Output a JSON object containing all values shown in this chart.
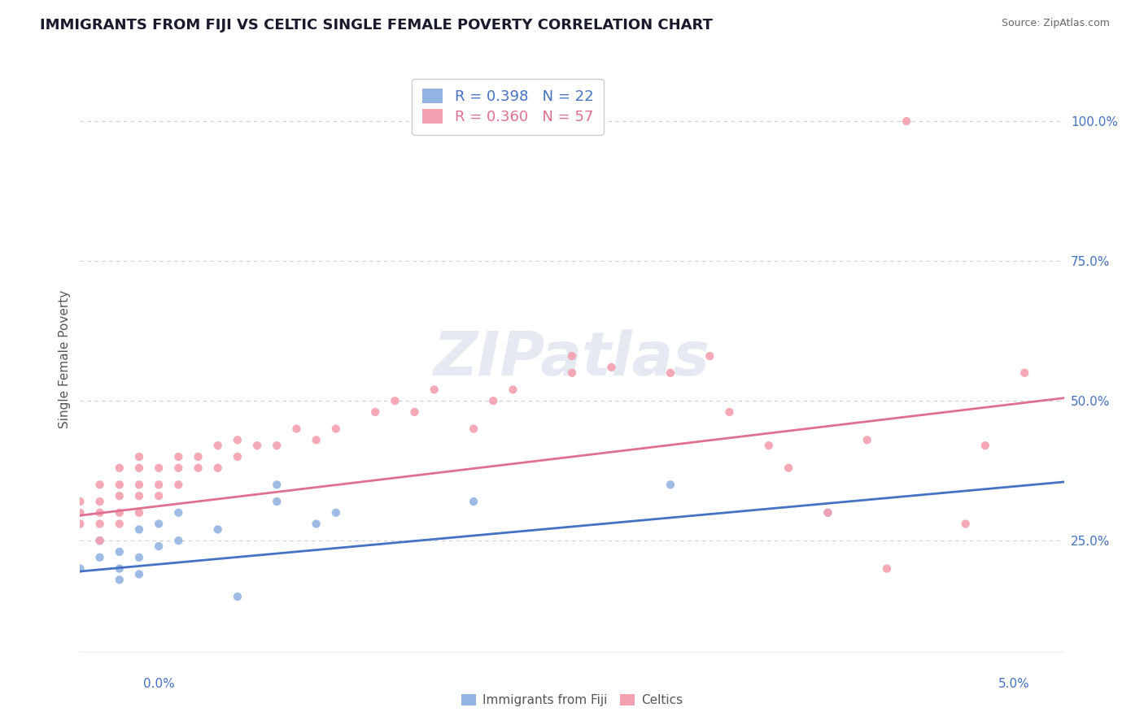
{
  "title": "IMMIGRANTS FROM FIJI VS CELTIC SINGLE FEMALE POVERTY CORRELATION CHART",
  "source": "Source: ZipAtlas.com",
  "ylabel": "Single Female Poverty",
  "watermark": "ZIPatlas",
  "xlim": [
    0.0,
    0.05
  ],
  "ylim": [
    0.05,
    1.1
  ],
  "yticks": [
    0.25,
    0.5,
    0.75,
    1.0
  ],
  "ytick_labels": [
    "25.0%",
    "50.0%",
    "75.0%",
    "100.0%"
  ],
  "fiji_R": 0.398,
  "fiji_N": 22,
  "celtic_R": 0.36,
  "celtic_N": 57,
  "fiji_color": "#92b4e3",
  "celtic_color": "#f4a0b0",
  "fiji_scatter_x": [
    0.0,
    0.001,
    0.001,
    0.002,
    0.002,
    0.002,
    0.003,
    0.003,
    0.003,
    0.004,
    0.004,
    0.005,
    0.005,
    0.007,
    0.008,
    0.01,
    0.01,
    0.012,
    0.013,
    0.02,
    0.03,
    0.038
  ],
  "fiji_scatter_y": [
    0.2,
    0.22,
    0.25,
    0.18,
    0.2,
    0.23,
    0.19,
    0.22,
    0.27,
    0.24,
    0.28,
    0.25,
    0.3,
    0.27,
    0.15,
    0.32,
    0.35,
    0.28,
    0.3,
    0.32,
    0.35,
    0.3
  ],
  "celtic_scatter_x": [
    0.0,
    0.0,
    0.0,
    0.001,
    0.001,
    0.001,
    0.001,
    0.001,
    0.002,
    0.002,
    0.002,
    0.002,
    0.002,
    0.003,
    0.003,
    0.003,
    0.003,
    0.003,
    0.004,
    0.004,
    0.004,
    0.005,
    0.005,
    0.005,
    0.006,
    0.006,
    0.007,
    0.007,
    0.008,
    0.008,
    0.009,
    0.01,
    0.011,
    0.012,
    0.013,
    0.015,
    0.016,
    0.017,
    0.018,
    0.02,
    0.021,
    0.022,
    0.025,
    0.025,
    0.027,
    0.03,
    0.032,
    0.033,
    0.035,
    0.036,
    0.038,
    0.04,
    0.041,
    0.042,
    0.045,
    0.046,
    0.048
  ],
  "celtic_scatter_y": [
    0.28,
    0.3,
    0.32,
    0.25,
    0.28,
    0.3,
    0.32,
    0.35,
    0.28,
    0.3,
    0.33,
    0.35,
    0.38,
    0.3,
    0.33,
    0.35,
    0.38,
    0.4,
    0.33,
    0.35,
    0.38,
    0.35,
    0.38,
    0.4,
    0.38,
    0.4,
    0.38,
    0.42,
    0.4,
    0.43,
    0.42,
    0.42,
    0.45,
    0.43,
    0.45,
    0.48,
    0.5,
    0.48,
    0.52,
    0.45,
    0.5,
    0.52,
    0.55,
    0.58,
    0.56,
    0.55,
    0.58,
    0.48,
    0.42,
    0.38,
    0.3,
    0.43,
    0.2,
    1.0,
    0.28,
    0.42,
    0.55
  ],
  "fiji_line_x": [
    0.0,
    0.05
  ],
  "fiji_line_y": [
    0.195,
    0.355
  ],
  "celtic_line_x": [
    0.0,
    0.05
  ],
  "celtic_line_y": [
    0.295,
    0.505
  ],
  "fiji_line_color": "#4472c4",
  "celtic_line_color": "#e07090",
  "background_color": "#ffffff",
  "grid_color": "#cccccc",
  "title_fontsize": 13,
  "scatter_size": 55,
  "legend_label_fiji": "R = 0.398   N = 22",
  "legend_label_celtic": "R = 0.360   N = 57",
  "bottom_label_fiji": "Immigrants from Fiji",
  "bottom_label_celtic": "Celtics"
}
